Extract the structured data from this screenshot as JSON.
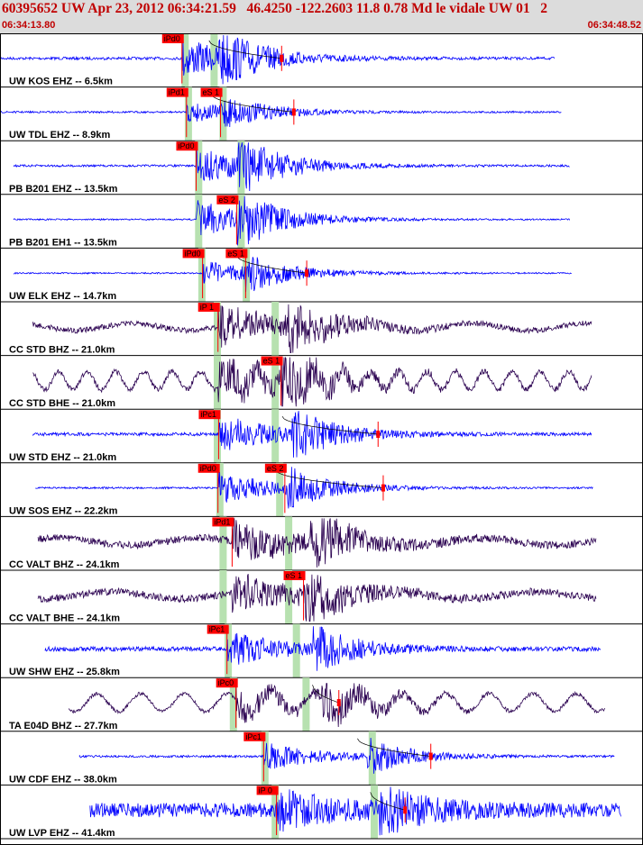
{
  "header": {
    "title": "60395652 UW Apr 23, 2012 06:34:21.59   46.4250 -122.2603 11.8 0.78 Md le vidale UW 01   2",
    "start_time": "06:34:13.80",
    "end_time": "06:34:48.52"
  },
  "colors": {
    "header_bg": "#dcdcdc",
    "header_text": "#c00000",
    "trace_ehz": "#0000ff",
    "trace_broadband": "#2a0050",
    "pick_line": "#ff0000",
    "pick_box": "#ff0000",
    "window_band": "#b7e1b0",
    "coda_curve": "#000000"
  },
  "traces": [
    {
      "label": "UW KOS EHZ -- 6.5km",
      "kind": "ehz",
      "start": 0.0,
      "end": 0.862,
      "p_time": 0.283,
      "s_time": null,
      "coda": 0.438,
      "p_pick": "iPd0",
      "s_pick": null,
      "amp": 22,
      "noise": 1.5,
      "period": 0.0009,
      "band1": 0.288,
      "band2": 0.333
    },
    {
      "label": "UW TDL EHZ -- 8.9km",
      "kind": "ehz",
      "start": 0.0,
      "end": 0.873,
      "p_time": 0.29,
      "s_time": 0.343,
      "coda": 0.457,
      "p_pick": "iPd1",
      "s_pick": "eS 1",
      "amp": 12,
      "noise": 1.0,
      "period": 0.0009,
      "band1": 0.293,
      "band2": 0.347
    },
    {
      "label": "PB B201 EHZ -- 13.5km",
      "kind": "ehz",
      "start": 0.021,
      "end": 0.886,
      "p_time": 0.305,
      "s_time": 0.369,
      "coda": null,
      "p_pick": "iPd0",
      "s_pick": null,
      "amp": 22,
      "noise": 1.2,
      "period": 0.0009,
      "band1": 0.309,
      "band2": 0.375
    },
    {
      "label": "PB B201 EH1 -- 13.5km",
      "kind": "ehz",
      "start": 0.021,
      "end": 0.886,
      "p_time": 0.305,
      "s_time": 0.368,
      "coda": null,
      "p_pick": null,
      "s_pick": "eS 2",
      "amp": 22,
      "noise": 0.8,
      "period": 0.0009,
      "band1": 0.309,
      "band2": 0.375
    },
    {
      "label": "UW ELK EHZ -- 14.7km",
      "kind": "ehz",
      "start": 0.021,
      "end": 0.889,
      "p_time": 0.315,
      "s_time": 0.382,
      "coda": 0.477,
      "p_pick": "iPd0",
      "s_pick": "eS 1",
      "amp": 14,
      "noise": 0.8,
      "period": 0.0009,
      "band1": 0.314,
      "band2": 0.383
    },
    {
      "label": "CC STD BHZ -- 21.0km",
      "kind": "bb",
      "start": 0.051,
      "end": 0.92,
      "p_time": 0.339,
      "s_time": 0.443,
      "coda": null,
      "p_pick": "iP 1",
      "s_pick": null,
      "amp": 24,
      "noise": 3.0,
      "period": 0.05,
      "band1": 0.338,
      "band2": 0.428
    },
    {
      "label": "CC STD BHE -- 21.0km",
      "kind": "bb",
      "start": 0.051,
      "end": 0.92,
      "p_time": 0.339,
      "s_time": 0.437,
      "coda": null,
      "p_pick": null,
      "s_pick": "eS 1",
      "amp": 24,
      "noise": 3.0,
      "period": 0.2,
      "band1": 0.338,
      "band2": 0.428
    },
    {
      "label": "UW STD EHZ -- 21.0km",
      "kind": "ehz",
      "start": 0.051,
      "end": 0.92,
      "p_time": 0.34,
      "s_time": 0.453,
      "coda": 0.588,
      "p_pick": "iPc1",
      "s_pick": null,
      "amp": 22,
      "noise": 1.8,
      "period": 0.0009,
      "band1": 0.338,
      "band2": 0.428
    },
    {
      "label": "UW SOS EHZ -- 22.2km",
      "kind": "ehz",
      "start": 0.055,
      "end": 0.922,
      "p_time": 0.339,
      "s_time": 0.443,
      "coda": 0.596,
      "p_pick": "iPd0",
      "s_pick": "eS 2",
      "amp": 18,
      "noise": 1.0,
      "period": 0.0009,
      "band1": 0.342,
      "band2": 0.435
    },
    {
      "label": "CC VALT BHZ -- 24.1km",
      "kind": "bb",
      "start": 0.059,
      "end": 0.927,
      "p_time": 0.361,
      "s_time": 0.483,
      "coda": null,
      "p_pick": "iPd1",
      "s_pick": null,
      "amp": 24,
      "noise": 4.0,
      "period": 0.04,
      "band1": 0.347,
      "band2": 0.449
    },
    {
      "label": "CC VALT BHE -- 24.1km",
      "kind": "bb",
      "start": 0.059,
      "end": 0.927,
      "p_time": 0.361,
      "s_time": 0.472,
      "coda": null,
      "p_pick": null,
      "s_pick": "eS 1",
      "amp": 22,
      "noise": 4.0,
      "period": 0.04,
      "band1": 0.347,
      "band2": 0.449
    },
    {
      "label": "UW SHW EHZ -- 25.8km",
      "kind": "ehz",
      "start": 0.07,
      "end": 0.934,
      "p_time": 0.353,
      "s_time": 0.487,
      "coda": null,
      "p_pick": "iPc1",
      "s_pick": null,
      "amp": 20,
      "noise": 2.5,
      "period": 0.0009,
      "band1": 0.355,
      "band2": 0.461
    },
    {
      "label": "TA E04D BHZ -- 27.7km",
      "kind": "bb",
      "start": 0.107,
      "end": 0.941,
      "p_time": 0.367,
      "s_time": 0.5,
      "coda": 0.527,
      "p_pick": "iPc0",
      "s_pick": null,
      "amp": 18,
      "noise": 2.0,
      "period": 0.13,
      "band1": 0.363,
      "band2": 0.476
    },
    {
      "label": "UW CDF EHZ -- 38.0km",
      "kind": "ehz",
      "start": 0.123,
      "end": 0.956,
      "p_time": 0.41,
      "s_time": 0.57,
      "coda": 0.67,
      "p_pick": "iPc1",
      "s_pick": null,
      "amp": 16,
      "noise": 1.2,
      "period": 0.0009,
      "band1": 0.412,
      "band2": 0.579
    },
    {
      "label": "UW LVP EHZ -- 41.4km",
      "kind": "ehz",
      "start": 0.14,
      "end": 0.966,
      "p_time": 0.43,
      "s_time": 0.59,
      "coda": 0.63,
      "p_pick": "iP 0",
      "s_pick": null,
      "amp": 20,
      "noise": 8.0,
      "period": 0.0009,
      "band1": 0.428,
      "band2": 0.582
    }
  ]
}
